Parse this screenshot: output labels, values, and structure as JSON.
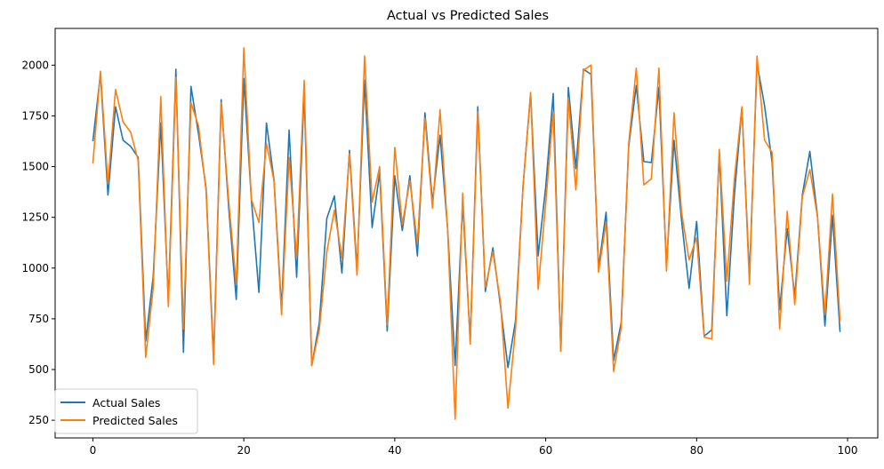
{
  "chart_data": {
    "type": "line",
    "title": "Actual vs Predicted Sales",
    "xlabel": "",
    "ylabel": "",
    "xlim": [
      -5,
      104
    ],
    "ylim": [
      163,
      2181
    ],
    "xticks": [
      0,
      20,
      40,
      60,
      80,
      100
    ],
    "yticks": [
      250,
      500,
      750,
      1000,
      1250,
      1500,
      1750,
      2000
    ],
    "grid": false,
    "legend": "lower-left",
    "x": [
      0,
      1,
      2,
      3,
      4,
      5,
      6,
      7,
      8,
      9,
      10,
      11,
      12,
      13,
      14,
      15,
      16,
      17,
      18,
      19,
      20,
      21,
      22,
      23,
      24,
      25,
      26,
      27,
      28,
      29,
      30,
      31,
      32,
      33,
      34,
      35,
      36,
      37,
      38,
      39,
      40,
      41,
      42,
      43,
      44,
      45,
      46,
      47,
      48,
      49,
      50,
      51,
      52,
      53,
      54,
      55,
      56,
      57,
      58,
      59,
      60,
      61,
      62,
      63,
      64,
      65,
      66,
      67,
      68,
      69,
      70,
      71,
      72,
      73,
      74,
      75,
      76,
      77,
      78,
      79,
      80,
      81,
      82,
      83,
      84,
      85,
      86,
      87,
      88,
      89,
      90,
      91,
      92,
      93,
      94,
      95,
      96,
      97,
      98,
      99
    ],
    "series": [
      {
        "name": "Actual Sales",
        "color": "#1f77b4",
        "values": [
          1625,
          1955,
          1360,
          1795,
          1630,
          1600,
          1545,
          640,
          960,
          1715,
          840,
          1980,
          585,
          1895,
          1660,
          1395,
          555,
          1830,
          1295,
          845,
          1935,
          1340,
          880,
          1715,
          1435,
          800,
          1680,
          955,
          1870,
          520,
          730,
          1245,
          1355,
          975,
          1580,
          995,
          1925,
          1200,
          1470,
          690,
          1455,
          1185,
          1455,
          1060,
          1765,
          1325,
          1655,
          1195,
          520,
          1320,
          645,
          1795,
          885,
          1100,
          815,
          510,
          740,
          1405,
          1860,
          1060,
          1400,
          1860,
          590,
          1890,
          1490,
          1980,
          1955,
          1000,
          1275,
          545,
          730,
          1600,
          1900,
          1525,
          1520,
          1890,
          1010,
          1630,
          1235,
          900,
          1230,
          665,
          695,
          1565,
          765,
          1360,
          1790,
          960,
          2010,
          1800,
          1520,
          795,
          1195,
          860,
          1360,
          1575,
          1260,
          715,
          1260,
          685
        ]
      },
      {
        "name": "Predicted Sales",
        "color": "#ff7f0e",
        "values": [
          1515,
          1970,
          1415,
          1880,
          1720,
          1670,
          1530,
          560,
          905,
          1845,
          810,
          1940,
          700,
          1815,
          1700,
          1380,
          525,
          1815,
          1330,
          920,
          2085,
          1340,
          1225,
          1615,
          1430,
          770,
          1545,
          1050,
          1925,
          520,
          695,
          1080,
          1285,
          1050,
          1565,
          965,
          2045,
          1325,
          1500,
          720,
          1595,
          1215,
          1430,
          1125,
          1740,
          1295,
          1780,
          1195,
          255,
          1370,
          625,
          1770,
          905,
          1080,
          835,
          310,
          700,
          1405,
          1865,
          895,
          1320,
          1770,
          590,
          1840,
          1385,
          1975,
          2000,
          980,
          1225,
          490,
          705,
          1615,
          1985,
          1410,
          1440,
          1985,
          985,
          1765,
          1275,
          1040,
          1150,
          660,
          650,
          1585,
          935,
          1440,
          1795,
          920,
          2045,
          1630,
          1570,
          700,
          1280,
          820,
          1350,
          1485,
          1255,
          770,
          1365,
          740
        ]
      }
    ]
  }
}
